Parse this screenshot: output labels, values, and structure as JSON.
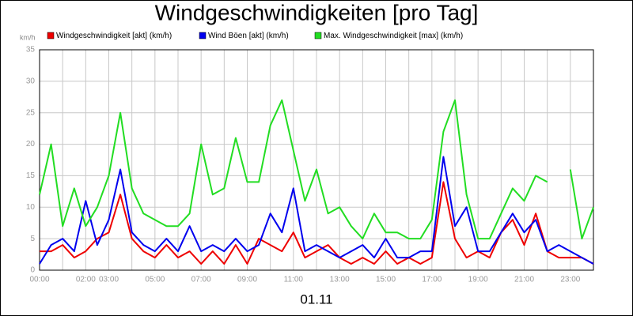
{
  "chart_data": {
    "type": "line",
    "title": "Windgeschwindigkeiten [pro Tag]",
    "y_unit": "km/h",
    "xlabel": "01.11",
    "x": [
      0,
      0.5,
      1,
      1.5,
      2,
      2.5,
      3,
      3.5,
      4,
      4.5,
      5,
      5.5,
      6,
      6.5,
      7,
      7.5,
      8,
      8.5,
      9,
      9.5,
      10,
      10.5,
      11,
      11.5,
      12,
      12.5,
      13,
      13.5,
      14,
      14.5,
      15,
      15.5,
      16,
      16.5,
      17,
      17.5,
      18,
      18.5,
      19,
      19.5,
      20,
      20.5,
      21,
      21.5,
      22,
      22.5,
      23,
      23.5,
      24
    ],
    "series": [
      {
        "name": "Windgeschwindigkeit [akt] (km/h)",
        "color": "#ee0000",
        "values": [
          3,
          3,
          4,
          2,
          3,
          5,
          6,
          12,
          5,
          3,
          2,
          4,
          2,
          3,
          1,
          3,
          1,
          4,
          1,
          5,
          4,
          3,
          6,
          2,
          3,
          4,
          2,
          1,
          2,
          1,
          3,
          1,
          2,
          1,
          2,
          14,
          5,
          2,
          3,
          2,
          6,
          8,
          4,
          9,
          3,
          2,
          2,
          2,
          1
        ]
      },
      {
        "name": "Wind Böen [akt] (km/h)",
        "color": "#0000ee",
        "values": [
          1,
          4,
          5,
          3,
          11,
          4,
          8,
          16,
          6,
          4,
          3,
          5,
          3,
          7,
          3,
          4,
          3,
          5,
          3,
          4,
          9,
          6,
          13,
          3,
          4,
          3,
          2,
          3,
          4,
          2,
          5,
          2,
          2,
          3,
          3,
          18,
          7,
          10,
          3,
          3,
          6,
          9,
          6,
          8,
          3,
          4,
          3,
          2,
          1
        ]
      },
      {
        "name": "Max. Windgeschwindigkeit [max] (km/h)",
        "color": "#22dd22",
        "values": [
          12,
          20,
          7,
          13,
          7,
          10,
          15,
          25,
          13,
          9,
          8,
          7,
          7,
          9,
          20,
          12,
          13,
          21,
          14,
          14,
          23,
          27,
          19,
          11,
          16,
          9,
          10,
          7,
          5,
          9,
          6,
          6,
          5,
          5,
          8,
          22,
          27,
          12,
          5,
          5,
          9,
          13,
          11,
          15,
          14,
          null,
          16,
          5,
          10
        ]
      }
    ],
    "xlim": [
      0,
      24
    ],
    "xticks": [
      {
        "value": 0,
        "label": "00:00"
      },
      {
        "value": 1,
        "label": null
      },
      {
        "value": 2,
        "label": "02:00"
      },
      {
        "value": 3,
        "label": "03:00"
      },
      {
        "value": 4,
        "label": null
      },
      {
        "value": 5,
        "label": "05:00"
      },
      {
        "value": 6,
        "label": null
      },
      {
        "value": 7,
        "label": "07:00"
      },
      {
        "value": 8,
        "label": null
      },
      {
        "value": 9,
        "label": "09:00"
      },
      {
        "value": 10,
        "label": null
      },
      {
        "value": 11,
        "label": "11:00"
      },
      {
        "value": 12,
        "label": null
      },
      {
        "value": 13,
        "label": "13:00"
      },
      {
        "value": 14,
        "label": null
      },
      {
        "value": 15,
        "label": "15:00"
      },
      {
        "value": 16,
        "label": null
      },
      {
        "value": 17,
        "label": "17:00"
      },
      {
        "value": 18,
        "label": null
      },
      {
        "value": 19,
        "label": "19:00"
      },
      {
        "value": 20,
        "label": null
      },
      {
        "value": 21,
        "label": "21:00"
      },
      {
        "value": 22,
        "label": null
      },
      {
        "value": 23,
        "label": "23:00"
      },
      {
        "value": 24,
        "label": null
      }
    ],
    "ylim": [
      0,
      35
    ],
    "yticks": [
      0,
      5,
      10,
      15,
      20,
      25,
      30,
      35
    ],
    "grid": true
  }
}
